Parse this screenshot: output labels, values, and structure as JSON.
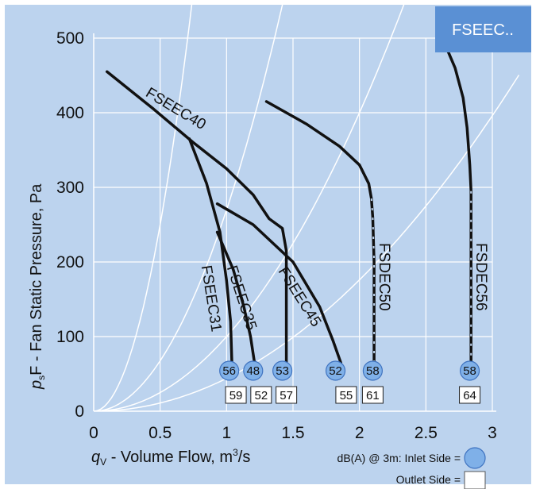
{
  "chart_data": {
    "type": "line",
    "title": "FSEEC..",
    "title_color": "#5a90d4",
    "xlabel": {
      "symbol": "q",
      "sub": "V",
      "text": " - Volume Flow, m",
      "sup": "3",
      "after": "/s"
    },
    "ylabel": {
      "symbol": "p",
      "sub": "s",
      "text": "F - Fan Static Pressure, Pa"
    },
    "xlim": [
      0,
      3
    ],
    "ylim": [
      0,
      500
    ],
    "xticks": [
      "0",
      "0.5",
      "1",
      "1.5",
      "2",
      "2.5",
      "3"
    ],
    "yticks": [
      "0",
      "100",
      "200",
      "300",
      "400",
      "500"
    ],
    "grid": true,
    "system_curve_k": [
      1000,
      270,
      100,
      44
    ],
    "series": [
      {
        "name": "FSEEC40",
        "points": [
          [
            0.1,
            455
          ],
          [
            0.45,
            405
          ],
          [
            0.75,
            360
          ],
          [
            1.0,
            325
          ],
          [
            1.2,
            290
          ],
          [
            1.32,
            258
          ],
          [
            1.42,
            245
          ],
          [
            1.45,
            215
          ],
          [
            1.45,
            140
          ],
          [
            1.45,
            65
          ]
        ],
        "label_at": [
          0.6,
          400,
          31
        ]
      },
      {
        "name": "FSEEC31",
        "points": [
          [
            0.72,
            365
          ],
          [
            0.85,
            305
          ],
          [
            0.95,
            240
          ],
          [
            1.0,
            175
          ],
          [
            1.03,
            120
          ],
          [
            1.04,
            65
          ]
        ],
        "label_at": [
          0.85,
          150,
          81
        ]
      },
      {
        "name": "FSEEC35",
        "points": [
          [
            0.93,
            240
          ],
          [
            1.05,
            190
          ],
          [
            1.13,
            140
          ],
          [
            1.18,
            100
          ],
          [
            1.21,
            65
          ]
        ],
        "label_at": [
          1.08,
          150,
          72
        ]
      },
      {
        "name": "FSEEC45",
        "points": [
          [
            0.93,
            278
          ],
          [
            1.2,
            250
          ],
          [
            1.5,
            200
          ],
          [
            1.7,
            140
          ],
          [
            1.8,
            95
          ],
          [
            1.86,
            65
          ]
        ],
        "label_at": [
          1.52,
          150,
          58
        ]
      },
      {
        "name": "FSDEC50",
        "points": [
          [
            1.3,
            415
          ],
          [
            1.6,
            385
          ],
          [
            1.85,
            355
          ],
          [
            2.0,
            330
          ],
          [
            2.07,
            305
          ],
          [
            2.09,
            285
          ],
          [
            2.1,
            260
          ],
          [
            2.11,
            200
          ],
          [
            2.11,
            130
          ],
          [
            2.11,
            65
          ]
        ],
        "label_at": [
          2.15,
          180,
          90
        ]
      },
      {
        "name": "FSDEC56",
        "points": [
          [
            2.66,
            485
          ],
          [
            2.72,
            460
          ],
          [
            2.78,
            420
          ],
          [
            2.81,
            380
          ],
          [
            2.83,
            330
          ],
          [
            2.84,
            295
          ],
          [
            2.84,
            200
          ],
          [
            2.84,
            130
          ],
          [
            2.84,
            65
          ]
        ],
        "label_at": [
          2.88,
          180,
          90
        ]
      }
    ],
    "inlet_levels": [
      {
        "value": "56",
        "x": 1.02
      },
      {
        "value": "48",
        "x": 1.2
      },
      {
        "value": "53",
        "x": 1.42
      },
      {
        "value": "52",
        "x": 1.82
      },
      {
        "value": "58",
        "x": 2.1
      },
      {
        "value": "58",
        "x": 2.83
      }
    ],
    "outlet_levels": [
      {
        "value": "59",
        "x": 1.07
      },
      {
        "value": "52",
        "x": 1.26
      },
      {
        "value": "57",
        "x": 1.45
      },
      {
        "value": "55",
        "x": 1.9
      },
      {
        "value": "61",
        "x": 2.1
      },
      {
        "value": "64",
        "x": 2.83
      }
    ],
    "legend": {
      "inlet_label": "dB(A) @ 3m: Inlet Side  =",
      "outlet_label": "Outlet Side ="
    },
    "colors": {
      "curve": "#111111",
      "grid": "#ffffff",
      "inlet": "#7fb0e8",
      "outlet": "#ffffff"
    }
  }
}
